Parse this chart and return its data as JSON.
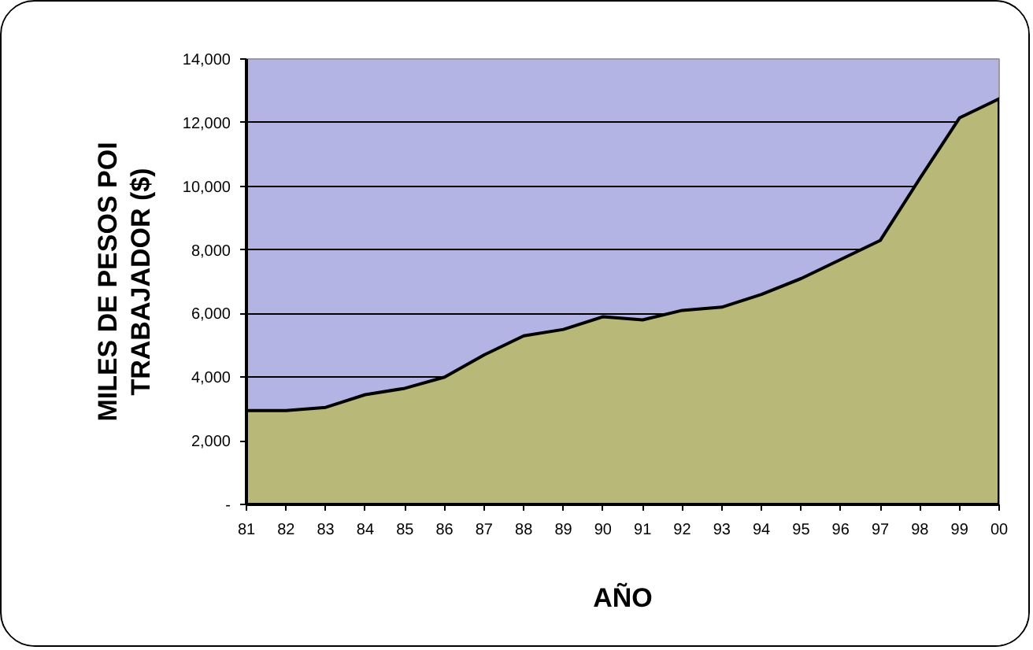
{
  "chart_data": {
    "type": "area",
    "xlabel": "AÑO",
    "ylabel": "MILES DE PESOS POI TRABAJADOR ($)",
    "categories": [
      "81",
      "82",
      "83",
      "84",
      "85",
      "86",
      "87",
      "88",
      "89",
      "90",
      "91",
      "92",
      "93",
      "94",
      "95",
      "96",
      "97",
      "98",
      "99",
      "00"
    ],
    "values": [
      2950,
      2950,
      3050,
      3450,
      3650,
      4000,
      4700,
      5300,
      5500,
      5900,
      5800,
      6100,
      6200,
      6600,
      7100,
      7700,
      8300,
      10250,
      12150,
      12750
    ],
    "color": "#b8b878",
    "ylim": [
      0,
      14000
    ],
    "yticks": [
      {
        "value": 0,
        "label": "-"
      },
      {
        "value": 2000,
        "label": "2,000"
      },
      {
        "value": 4000,
        "label": "4,000"
      },
      {
        "value": 6000,
        "label": "6,000"
      },
      {
        "value": 8000,
        "label": "8,000"
      },
      {
        "value": 10000,
        "label": "10,000"
      },
      {
        "value": 12000,
        "label": "12,000"
      },
      {
        "value": 14000,
        "label": "14,000"
      }
    ],
    "grid": "y"
  }
}
